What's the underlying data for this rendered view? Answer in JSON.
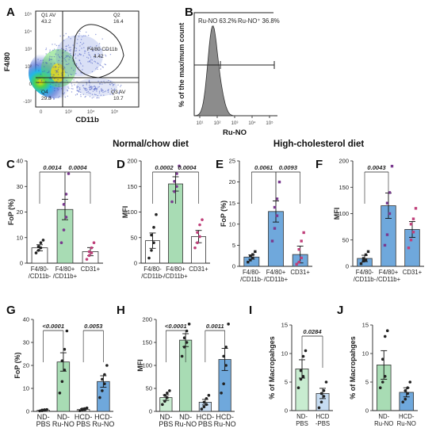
{
  "sections": {
    "normal": "Normal/chow diet",
    "hc": "High-cholesterol diet"
  },
  "chart_data": [
    {
      "panel": "A",
      "type": "scatter",
      "xlabel": "CD11b",
      "ylabel": "F4/80",
      "quadrants": [
        {
          "label": "Q1 AV",
          "value": "43.2"
        },
        {
          "label": "Q2",
          "value": "16.4"
        },
        {
          "label": "Q3 AV",
          "value": "10.7"
        },
        {
          "label": "Q4",
          "value": "29.8"
        }
      ],
      "gate": {
        "label": "F4/80 CD11b",
        "value": "4.42"
      }
    },
    {
      "panel": "B",
      "type": "area",
      "xlabel": "Ru-NO",
      "ylabel": "% of the max/mum count",
      "xticks": [
        "10¹",
        "10²",
        "10³",
        "10⁴",
        "10⁵"
      ],
      "annotations": [
        "Ru-NO 63.2%",
        "Ru-NO⁺ 36.8%"
      ]
    },
    {
      "panel": "C",
      "type": "bar",
      "ylabel": "FoP (%)",
      "yticks": [
        "0",
        "10",
        "20",
        "30",
        "40"
      ],
      "ylim": [
        0,
        40
      ],
      "categories": [
        "F4/80-\n/CD11b-",
        "F4/80+\n/CD11b+",
        "CD31+"
      ],
      "values": [
        6,
        21,
        4.5
      ],
      "errors": [
        1.2,
        4,
        1.6
      ],
      "colors": [
        "#ffffff",
        "#a8dcb4",
        "#ffffff"
      ],
      "points": [
        [
          4,
          5,
          6,
          6.5,
          8,
          9
        ],
        [
          8,
          13,
          18,
          23,
          27,
          35
        ],
        [
          1.5,
          3,
          4,
          4.5,
          6,
          8
        ]
      ],
      "point_colors": [
        "#222222",
        "#7a3a8f",
        "#c0407a"
      ],
      "pvalues": [
        {
          "text": "0.0014",
          "from": 0,
          "to": 1
        },
        {
          "text": "0.0004",
          "from": 1,
          "to": 2
        }
      ]
    },
    {
      "panel": "D",
      "type": "bar",
      "ylabel": "MFI",
      "yticks": [
        "0",
        "50",
        "100",
        "150",
        "200"
      ],
      "ylim": [
        0,
        200
      ],
      "categories": [
        "F4/80-\n/CD11b-",
        "F4/80+\n/CD11b+",
        "CD31+"
      ],
      "values": [
        44,
        155,
        52
      ],
      "errors": [
        15,
        14,
        12
      ],
      "colors": [
        "#ffffff",
        "#a8dcb4",
        "#ffffff"
      ],
      "points": [
        [
          10,
          25,
          40,
          55,
          70,
          95
        ],
        [
          120,
          140,
          150,
          160,
          175,
          190
        ],
        [
          30,
          40,
          52,
          60,
          75,
          85
        ]
      ],
      "point_colors": [
        "#222222",
        "#7a3a8f",
        "#c0407a"
      ],
      "pvalues": [
        {
          "text": "0.0002",
          "from": 0,
          "to": 1
        },
        {
          "text": "0.0004",
          "from": 1,
          "to": 2
        }
      ]
    },
    {
      "panel": "E",
      "type": "bar",
      "ylabel": "FoP (%)",
      "yticks": [
        "0",
        "5",
        "10",
        "15",
        "20",
        "25"
      ],
      "ylim": [
        0,
        25
      ],
      "categories": [
        "F4/80-\n/CD11b-",
        "F4/80+\n/CD11b+",
        "CD31+"
      ],
      "values": [
        2.2,
        13,
        2.8
      ],
      "errors": [
        0.5,
        2.5,
        2
      ],
      "colors": [
        "#6fa8dc",
        "#6fa8dc",
        "#6fa8dc"
      ],
      "points": [
        [
          1,
          1.5,
          2,
          2.5,
          2.8,
          3.5
        ],
        [
          6,
          9,
          12,
          14,
          16,
          20
        ],
        [
          0.5,
          1,
          2,
          4,
          6,
          8
        ]
      ],
      "point_colors": [
        "#222222",
        "#7a3a8f",
        "#c0407a"
      ],
      "pvalues": [
        {
          "text": "0.0061",
          "from": 0,
          "to": 1
        },
        {
          "text": "0.0093",
          "from": 1,
          "to": 2
        }
      ]
    },
    {
      "panel": "F",
      "type": "bar",
      "ylabel": "MFI",
      "yticks": [
        "0",
        "50",
        "100",
        "150",
        "200"
      ],
      "ylim": [
        0,
        200
      ],
      "categories": [
        "F4/80-\n/CD11b-",
        "F4/80+\n/CD11b+",
        "CD31+"
      ],
      "values": [
        15,
        115,
        70
      ],
      "errors": [
        6,
        24,
        15
      ],
      "colors": [
        "#6fa8dc",
        "#6fa8dc",
        "#6fa8dc"
      ],
      "points": [
        [
          5,
          10,
          12,
          15,
          22,
          28
        ],
        [
          40,
          60,
          100,
          120,
          140,
          190
        ],
        [
          35,
          50,
          65,
          80,
          90,
          110
        ]
      ],
      "point_colors": [
        "#222222",
        "#7a3a8f",
        "#c0407a"
      ],
      "pvalues": [
        {
          "text": "0.0043",
          "from": 0,
          "to": 1
        }
      ]
    },
    {
      "panel": "G",
      "type": "bar",
      "ylabel": "FoP (%)",
      "yticks": [
        "0",
        "10",
        "20",
        "30",
        "40"
      ],
      "ylim": [
        0,
        40
      ],
      "categories": [
        "ND-\nPBS",
        "ND-\nRu-NO",
        "HCD-\nPBS",
        "HCD-\nRu-NO"
      ],
      "values": [
        0.5,
        21.5,
        0.8,
        13
      ],
      "errors": [
        0.2,
        4,
        0.4,
        2.5
      ],
      "colors": [
        "#ffffff",
        "#a8dcb4",
        "#ffffff",
        "#6fa8dc"
      ],
      "points": [
        [
          0.2,
          0.3,
          0.5,
          0.6,
          0.7,
          0.8
        ],
        [
          8,
          13,
          18,
          22,
          27,
          35
        ],
        [
          0.3,
          0.6,
          0.8,
          1,
          1.2,
          1.5
        ],
        [
          6,
          9,
          12,
          14,
          16,
          20
        ]
      ],
      "point_colors": [
        "#222222",
        "#222222",
        "#222222",
        "#222222"
      ],
      "pvalues": [
        {
          "text": "<0.0001",
          "from": 0,
          "to": 1
        },
        {
          "text": "0.0053",
          "from": 2,
          "to": 3
        }
      ]
    },
    {
      "panel": "H",
      "type": "bar",
      "ylabel": "MFI",
      "yticks": [
        "0",
        "50",
        "100",
        "150",
        "200"
      ],
      "ylim": [
        0,
        200
      ],
      "categories": [
        "ND-\nPBS",
        "ND-\nRu-NO",
        "HCD-\nPBS",
        "HCD-\nRu-NO"
      ],
      "values": [
        30,
        155,
        20,
        113
      ],
      "errors": [
        6,
        14,
        6,
        24
      ],
      "colors": [
        "#c8ecd0",
        "#a8dcb4",
        "#c6dcf2",
        "#6fa8dc"
      ],
      "points": [
        [
          15,
          22,
          30,
          35,
          40,
          45
        ],
        [
          120,
          140,
          150,
          160,
          175,
          190
        ],
        [
          5,
          10,
          15,
          20,
          28,
          35
        ],
        [
          40,
          60,
          100,
          120,
          140,
          190
        ]
      ],
      "point_colors": [
        "#222222",
        "#222222",
        "#222222",
        "#222222"
      ],
      "pvalues": [
        {
          "text": "<0.0001",
          "from": 0,
          "to": 1
        },
        {
          "text": "0.0011",
          "from": 2,
          "to": 3
        }
      ]
    },
    {
      "panel": "I",
      "type": "bar",
      "ylabel": "% of Macropahges",
      "yticks": [
        "0",
        "5",
        "10",
        "15"
      ],
      "ylim": [
        0,
        15
      ],
      "categories": [
        "ND-\nPBS",
        "HCD\n-PBS"
      ],
      "values": [
        7.3,
        3
      ],
      "errors": [
        1.6,
        0.9
      ],
      "colors": [
        "#c8ecd0",
        "#c6dcf2"
      ],
      "points": [
        [
          4,
          5.5,
          6,
          7,
          9.5,
          10.5
        ],
        [
          0.5,
          1.5,
          2.5,
          3,
          3.5,
          5
        ]
      ],
      "point_colors": [
        "#222222",
        "#222222"
      ],
      "pvalues": [
        {
          "text": "0.0284",
          "from": 0,
          "to": 1
        }
      ]
    },
    {
      "panel": "J",
      "type": "bar",
      "ylabel": "% of Macropahges",
      "yticks": [
        "0",
        "5",
        "10",
        "15"
      ],
      "ylim": [
        0,
        15
      ],
      "categories": [
        "ND-\nRu-NO",
        "HCD-\nRu-NO"
      ],
      "values": [
        8,
        3.2
      ],
      "errors": [
        2.5,
        0.8
      ],
      "colors": [
        "#a8dcb4",
        "#6fa8dc"
      ],
      "points": [
        [
          4,
          5,
          6,
          9,
          13,
          14
        ],
        [
          1.5,
          2,
          3,
          3.5,
          4,
          5
        ]
      ],
      "point_colors": [
        "#222222",
        "#222222"
      ],
      "pvalues": []
    }
  ]
}
